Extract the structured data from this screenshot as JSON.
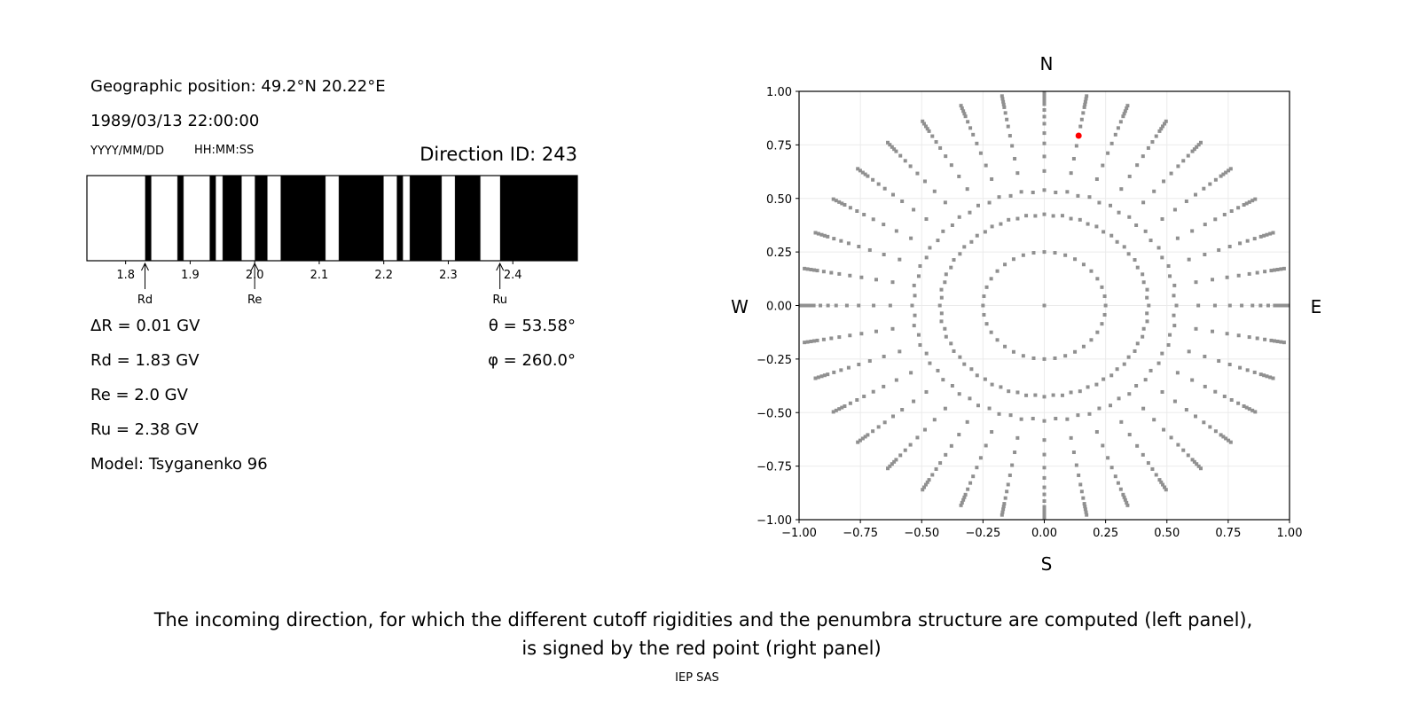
{
  "header": {
    "geo_position": "Geographic position: 49.2°N 20.22°E",
    "datetime": "1989/03/13 22:00:00",
    "date_format": "YYYY/MM/DD",
    "time_format": "HH:MM:SS",
    "direction_id": "Direction ID: 243"
  },
  "params": {
    "delta_r": "ΔR = 0.01 GV",
    "rd": "Rd = 1.83 GV",
    "re": "Re = 2.0 GV",
    "ru": "Ru = 2.38 GV",
    "model": "Model: Tsyganenko 96",
    "theta": "θ = 53.58°",
    "phi": "φ = 260.0°"
  },
  "caption": {
    "line1": "The incoming direction, for which the different cutoff rigidities and the penumbra structure are computed (left panel),",
    "line2": "is signed by the red point (right panel)",
    "credit": "IEP SAS"
  },
  "chart_data": [
    {
      "type": "bar",
      "xlim": [
        1.74,
        2.5
      ],
      "xticks": [
        "1.8",
        "1.9",
        "2.0",
        "2.1",
        "2.2",
        "2.3",
        "2.4"
      ],
      "allowed_color": "#ffffff",
      "forbidden_color": "#000000",
      "allowed_bands": [
        [
          1.74,
          1.83
        ],
        [
          1.84,
          1.88
        ],
        [
          1.89,
          1.93
        ],
        [
          1.94,
          1.95
        ],
        [
          1.98,
          2.0
        ],
        [
          2.02,
          2.04
        ],
        [
          2.11,
          2.13
        ],
        [
          2.2,
          2.22
        ],
        [
          2.23,
          2.24
        ],
        [
          2.29,
          2.31
        ],
        [
          2.35,
          2.38
        ]
      ],
      "markers": [
        {
          "label": "Rd",
          "value": 1.83
        },
        {
          "label": "Re",
          "value": 2.0
        },
        {
          "label": "Ru",
          "value": 2.38
        }
      ]
    },
    {
      "type": "scatter",
      "xlim": [
        -1,
        1
      ],
      "ylim": [
        -1,
        1
      ],
      "grid": true,
      "xticks": [
        "−1.00",
        "−0.75",
        "−0.50",
        "−0.25",
        "0.00",
        "0.25",
        "0.50",
        "0.75",
        "1.00"
      ],
      "yticks": [
        "−1.00",
        "−0.75",
        "−0.50",
        "−0.25",
        "0.00",
        "0.25",
        "0.50",
        "0.75",
        "1.00"
      ],
      "compass": {
        "top": "N",
        "bottom": "S",
        "left": "W",
        "right": "E"
      },
      "grid_points": {
        "color": "#909090",
        "azimuth_step_deg": 10,
        "inner_ring_radius": 0.25,
        "ray_radii": [
          0.426,
          0.539,
          0.628,
          0.696,
          0.757,
          0.805,
          0.849,
          0.882,
          0.913,
          0.94,
          0.953,
          0.966,
          0.98,
          0.993
        ]
      },
      "highlight": {
        "x": 0.14,
        "y": 0.793,
        "color": "#ff0000"
      }
    }
  ]
}
